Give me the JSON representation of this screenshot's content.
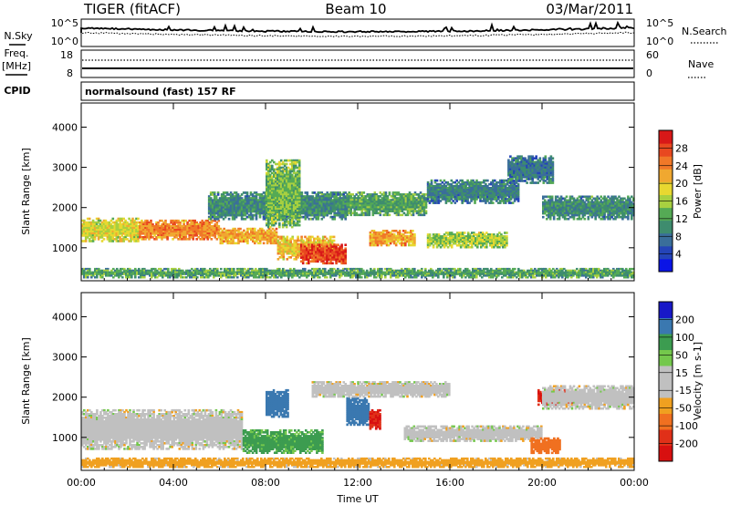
{
  "header": {
    "radar": "TIGER (fitACF)",
    "beam": "Beam 10",
    "date": "03/Mar/2011"
  },
  "strip_panels": {
    "noise_sky_label": "N.Sky",
    "noise_search_label": "N.Search",
    "noise_ticks": [
      "10^5",
      "10^0"
    ],
    "freq_label_line1": "Freq.",
    "freq_label_line2": "[MHz]",
    "freq_ticks": [
      "18",
      "8"
    ],
    "nave_label": "Nave",
    "nave_ticks": [
      "60",
      "0"
    ],
    "cpid_label": "CPID",
    "cpid_text": "normalsound (fast) 157 RF"
  },
  "chart_data": [
    {
      "type": "heatmap",
      "name": "power",
      "xlabel": "Time UT",
      "ylabel": "Slant Range [km]",
      "xlim": [
        0,
        24
      ],
      "ylim": [
        180,
        4600
      ],
      "x_ticks": [
        "00:00",
        "04:00",
        "08:00",
        "12:00",
        "16:00",
        "20:00",
        "00:00"
      ],
      "y_ticks": [
        1000,
        2000,
        3000,
        4000
      ],
      "colorbar": {
        "label": "Power [dB]",
        "ticks": [
          "28",
          "24",
          "20",
          "16",
          "12",
          "8",
          "4"
        ],
        "range": [
          0,
          32
        ],
        "colors": [
          "#0a14e6",
          "#2444b8",
          "#3a6e9a",
          "#3e8c6e",
          "#55aa55",
          "#a8d040",
          "#e8d830",
          "#f0a830",
          "#f07828",
          "#e84820",
          "#d81818"
        ]
      },
      "echo_bands": [
        {
          "t": [
            0.0,
            2.5
          ],
          "r": [
            1150,
            1750
          ],
          "power": 18
        },
        {
          "t": [
            2.5,
            6.0
          ],
          "r": [
            1200,
            1700
          ],
          "power": 24
        },
        {
          "t": [
            6.0,
            8.5
          ],
          "r": [
            1100,
            1500
          ],
          "power": 22
        },
        {
          "t": [
            8.5,
            11.0
          ],
          "r": [
            700,
            1300
          ],
          "power": 20
        },
        {
          "t": [
            9.5,
            11.5
          ],
          "r": [
            600,
            1100
          ],
          "power": 28
        },
        {
          "t": [
            5.5,
            11.5
          ],
          "r": [
            1700,
            2400
          ],
          "power": 10
        },
        {
          "t": [
            8.0,
            9.5
          ],
          "r": [
            1500,
            3200
          ],
          "power": 14
        },
        {
          "t": [
            11.5,
            15.0
          ],
          "r": [
            1800,
            2400
          ],
          "power": 12
        },
        {
          "t": [
            12.5,
            14.5
          ],
          "r": [
            1050,
            1450
          ],
          "power": 22
        },
        {
          "t": [
            15.0,
            18.5
          ],
          "r": [
            1000,
            1400
          ],
          "power": 16
        },
        {
          "t": [
            15.0,
            19.0
          ],
          "r": [
            2100,
            2700
          ],
          "power": 9
        },
        {
          "t": [
            18.5,
            20.5
          ],
          "r": [
            2600,
            3300
          ],
          "power": 8
        },
        {
          "t": [
            20.0,
            24.0
          ],
          "r": [
            1700,
            2300
          ],
          "power": 10
        },
        {
          "t": [
            0.0,
            24.0
          ],
          "r": [
            250,
            500
          ],
          "power": 12
        }
      ]
    },
    {
      "type": "heatmap",
      "name": "velocity",
      "xlabel": "Time UT",
      "ylabel": "Slant Range [km]",
      "xlim": [
        0,
        24
      ],
      "ylim": [
        180,
        4600
      ],
      "x_ticks": [
        "00:00",
        "04:00",
        "08:00",
        "12:00",
        "16:00",
        "20:00",
        "00:00"
      ],
      "y_ticks": [
        1000,
        2000,
        3000,
        4000
      ],
      "colorbar": {
        "label": "Velocity [m s-1]",
        "ticks": [
          "200",
          "100",
          "50",
          "15",
          "-15",
          "-50",
          "-100",
          "-200"
        ],
        "colors": [
          "#1818c8",
          "#3a78b0",
          "#3c9c50",
          "#74c84c",
          "#c0c0c0",
          "#c0c0c0",
          "#f0a020",
          "#f07020",
          "#e03018",
          "#d81010"
        ]
      },
      "echo_bands": [
        {
          "t": [
            0.0,
            7.0
          ],
          "r": [
            700,
            1700
          ],
          "velocity": 0
        },
        {
          "t": [
            7.0,
            10.5
          ],
          "r": [
            600,
            1200
          ],
          "velocity": 60
        },
        {
          "t": [
            8.0,
            9.0
          ],
          "r": [
            1500,
            2200
          ],
          "velocity": 150
        },
        {
          "t": [
            11.5,
            12.5
          ],
          "r": [
            1300,
            2000
          ],
          "velocity": 150
        },
        {
          "t": [
            12.5,
            13.0
          ],
          "r": [
            1200,
            1700
          ],
          "velocity": -200
        },
        {
          "t": [
            10.0,
            16.0
          ],
          "r": [
            2000,
            2400
          ],
          "velocity": 0
        },
        {
          "t": [
            14.0,
            20.0
          ],
          "r": [
            900,
            1300
          ],
          "velocity": 0
        },
        {
          "t": [
            19.8,
            21.5
          ],
          "r": [
            1800,
            2200
          ],
          "velocity": -200
        },
        {
          "t": [
            19.5,
            20.8
          ],
          "r": [
            600,
            1000
          ],
          "velocity": -80
        },
        {
          "t": [
            20.0,
            24.0
          ],
          "r": [
            1700,
            2300
          ],
          "velocity": 0
        },
        {
          "t": [
            0.0,
            24.0
          ],
          "r": [
            250,
            500
          ],
          "velocity": -30
        }
      ]
    }
  ]
}
